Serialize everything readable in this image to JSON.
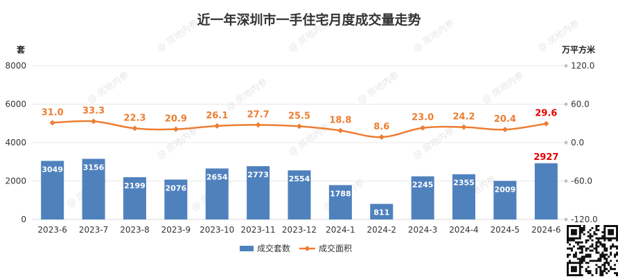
{
  "chart_data": {
    "type": "bar",
    "title": "近一年深圳市一手住宅月度成交量走势",
    "categories": [
      "2023-6",
      "2023-7",
      "2023-8",
      "2023-9",
      "2023-10",
      "2023-11",
      "2023-12",
      "2024-1",
      "2024-2",
      "2024-3",
      "2024-4",
      "2024-5",
      "2024-6"
    ],
    "left_axis": {
      "unit": "套",
      "ticks": [
        8000,
        6000,
        4000,
        2000,
        0
      ],
      "ylim": [
        0,
        8000
      ]
    },
    "right_axis": {
      "unit": "万平方米",
      "ticks": [
        "120.0",
        "60.0",
        "0.0",
        "-60.0",
        "-120.0"
      ],
      "ylim": [
        -120,
        120
      ]
    },
    "series": [
      {
        "name": "成交套数",
        "type": "bar",
        "axis": "left",
        "color": "#4f81bd",
        "values": [
          3049,
          3156,
          2199,
          2076,
          2654,
          2773,
          2554,
          1788,
          811,
          2245,
          2355,
          2009,
          2927
        ]
      },
      {
        "name": "成交面积",
        "type": "line",
        "axis": "right",
        "color": "#ed7d31",
        "values": [
          31.0,
          33.3,
          22.3,
          20.9,
          26.1,
          27.7,
          25.5,
          18.8,
          8.6,
          23.0,
          24.2,
          20.4,
          29.6
        ]
      }
    ],
    "highlight_color": "#e30000",
    "grid": true,
    "legend_position": "bottom"
  },
  "watermark": "@ 房地内参"
}
